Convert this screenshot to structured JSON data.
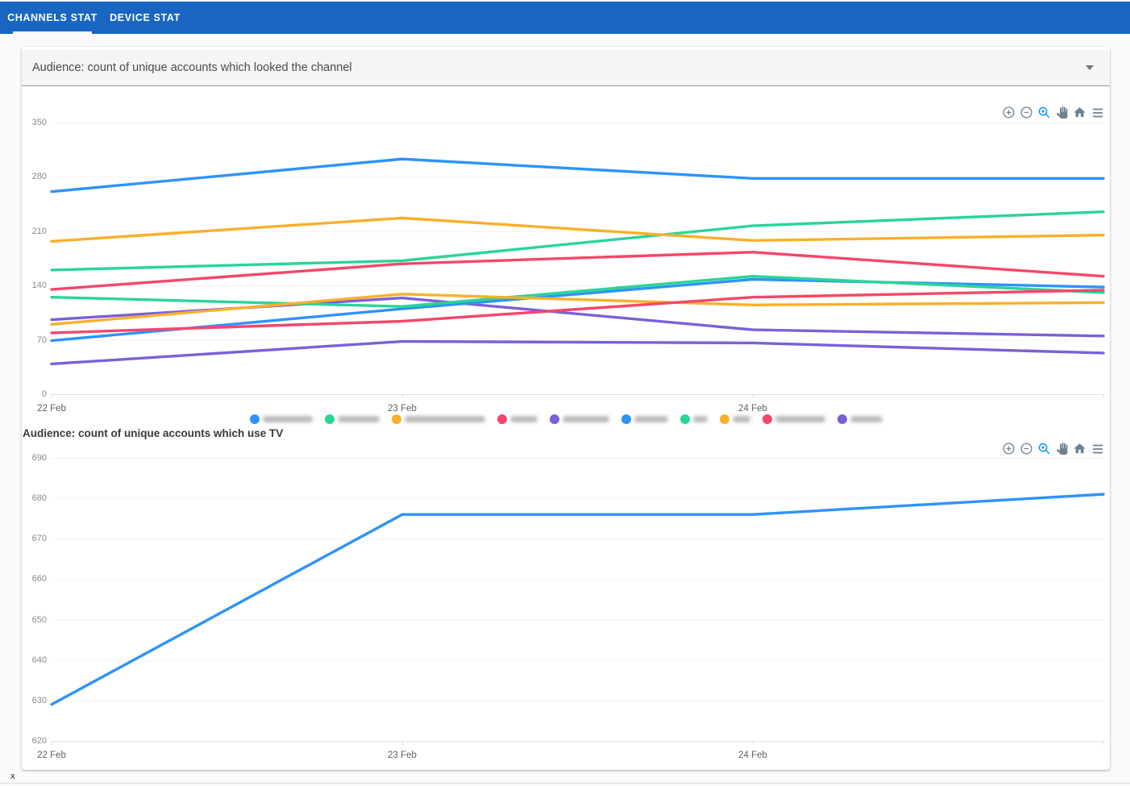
{
  "tabs": [
    {
      "label": "CHANNELS STAT",
      "active": true
    },
    {
      "label": "DEVICE STAT",
      "active": false
    }
  ],
  "select": {
    "value": "Audience: count of unique accounts which looked the channel"
  },
  "toolbar_icons": [
    "zoom-in",
    "zoom-out",
    "selection-zoom",
    "pan",
    "home",
    "menu"
  ],
  "colors": {
    "header_bar": "#1966C2",
    "toolbar_icon": "#6E8192",
    "toolbar_icon_active": "#008FFB",
    "grid": "#f2f2f2",
    "axis": "#e0e0e0",
    "y_label": "#8a8a8a",
    "x_label": "#5f5f5f"
  },
  "footer": {
    "stray_text": "x"
  },
  "chart_data": [
    {
      "type": "line",
      "title": "Audience: count of unique accounts which looked the channel",
      "x_tick_labels": [
        "22 Feb",
        "23 Feb",
        "24 Feb"
      ],
      "x_points": 4,
      "x_note": "4th data point sits at the right plot edge with no visible label",
      "ylim": [
        0,
        350
      ],
      "yticks": [
        350,
        280,
        210,
        140,
        70,
        0
      ],
      "grid": true,
      "legend_position": "bottom",
      "legend_labels_redacted": true,
      "series": [
        {
          "name": "channel-1",
          "color": "#2E93FA",
          "values": [
            261,
            303,
            278,
            278
          ],
          "legend_blur_width": 62
        },
        {
          "name": "channel-2",
          "color": "#2BD596",
          "values": [
            160,
            172,
            217,
            235
          ],
          "legend_blur_width": 52
        },
        {
          "name": "channel-3",
          "color": "#F9B02C",
          "values": [
            197,
            227,
            198,
            205
          ],
          "legend_blur_width": 100
        },
        {
          "name": "channel-4",
          "color": "#F4476B",
          "values": [
            135,
            168,
            183,
            152
          ],
          "legend_blur_width": 34
        },
        {
          "name": "channel-5",
          "color": "#7B61D6",
          "values": [
            96,
            124,
            83,
            75
          ],
          "legend_blur_width": 58
        },
        {
          "name": "channel-6",
          "color": "#2E93FA",
          "values": [
            69,
            110,
            148,
            138
          ],
          "legend_blur_width": 42
        },
        {
          "name": "channel-7",
          "color": "#2BD596",
          "values": [
            125,
            113,
            152,
            131
          ],
          "legend_blur_width": 18
        },
        {
          "name": "channel-8",
          "color": "#F9B02C",
          "values": [
            90,
            129,
            115,
            118
          ],
          "legend_blur_width": 22
        },
        {
          "name": "channel-9",
          "color": "#F4476B",
          "values": [
            79,
            94,
            125,
            134
          ],
          "legend_blur_width": 62
        },
        {
          "name": "channel-10",
          "color": "#7B61D6",
          "values": [
            39,
            68,
            66,
            53
          ],
          "legend_blur_width": 40
        }
      ]
    },
    {
      "type": "line",
      "title": "Audience: count of unique accounts which use TV",
      "x_tick_labels": [
        "22 Feb",
        "23 Feb",
        "24 Feb"
      ],
      "x_points": 4,
      "x_note": "4th data point sits at the right plot edge with no visible label",
      "ylim": [
        620,
        690
      ],
      "yticks": [
        690,
        680,
        670,
        660,
        650,
        640,
        630,
        620
      ],
      "grid": true,
      "legend_position": "none",
      "series": [
        {
          "name": "tv-audience",
          "color": "#2E93FA",
          "values": [
            629,
            676,
            676,
            681
          ]
        }
      ]
    }
  ]
}
